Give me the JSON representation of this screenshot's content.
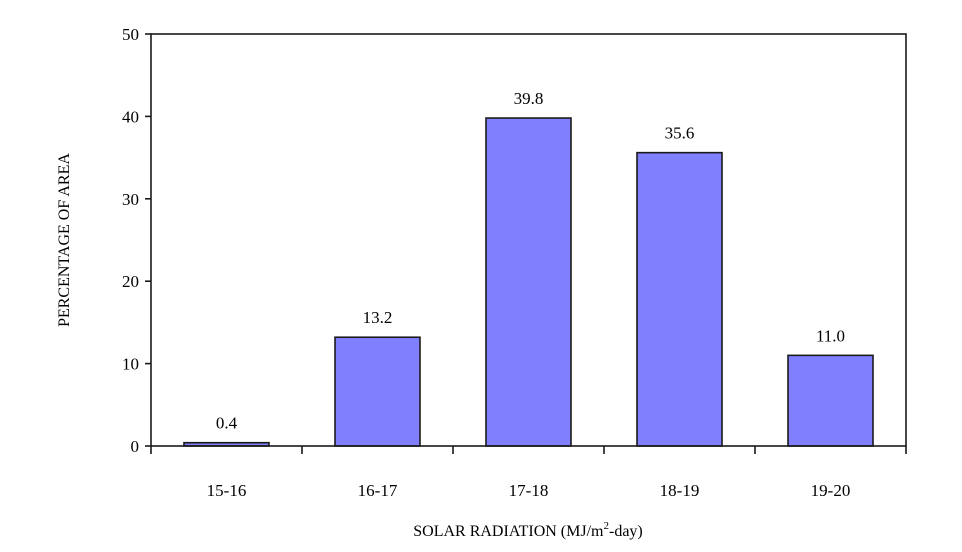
{
  "chart_data": {
    "type": "bar",
    "title": "",
    "xlabel": "SOLAR RADIATION (MJ/m",
    "xlabel_sup": "2",
    "xlabel_suffix": "-day)",
    "ylabel": "PERCENTAGE OF AREA",
    "categories": [
      "15-16",
      "16-17",
      "17-18",
      "18-19",
      "19-20"
    ],
    "values": [
      0.4,
      13.2,
      39.8,
      35.6,
      11.0
    ],
    "data_labels": [
      "0.4",
      "13.2",
      "39.8",
      "35.6",
      "11.0"
    ],
    "ylim": [
      0,
      50
    ],
    "yticks": [
      0,
      10,
      20,
      30,
      40,
      50
    ],
    "grid": false,
    "bar_color": "#8080FF",
    "edge_color": "#1a1a1a"
  }
}
